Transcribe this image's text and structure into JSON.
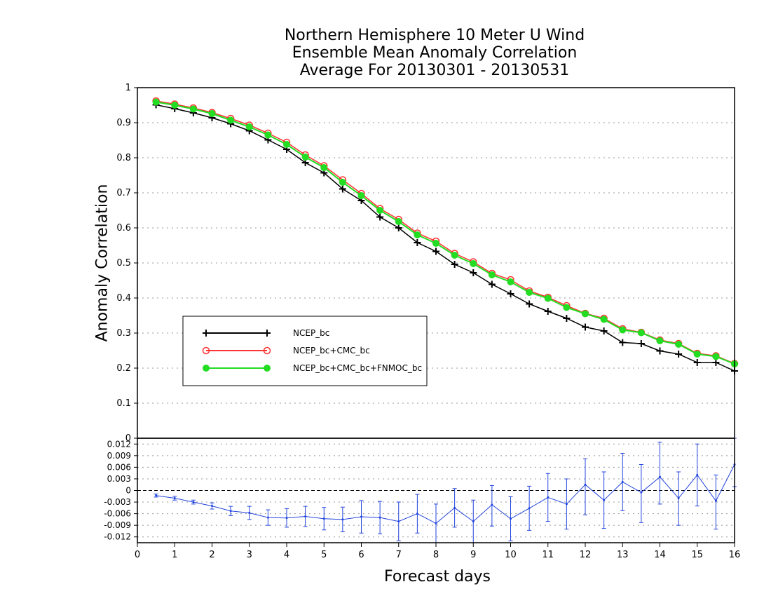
{
  "chart_data": [
    {
      "type": "line",
      "title": "Northern Hemisphere 10 Meter U Wind",
      "subtitle": "Ensemble Mean Anomaly Correlation",
      "subtitle2": "Average For 20130301 - 20130531",
      "ylabel": "Anomaly Correlation",
      "ylim": [
        0,
        1
      ],
      "yticks": [
        "0",
        "0.1",
        "0.2",
        "0.3",
        "0.4",
        "0.5",
        "0.6",
        "0.7",
        "0.8",
        "0.9",
        "1"
      ],
      "grid": true,
      "legend": "lower-left",
      "x": [
        0.5,
        1,
        1.5,
        2,
        2.5,
        3,
        3.5,
        4,
        4.5,
        5,
        5.5,
        6,
        6.5,
        7,
        7.5,
        8,
        8.5,
        9,
        9.5,
        10,
        10.5,
        11,
        11.5,
        12,
        12.5,
        13,
        13.5,
        14,
        14.5,
        15,
        15.5,
        16
      ],
      "series": [
        {
          "name": "NCEP_bc",
          "color": "#000000",
          "marker": "plus",
          "values": [
            0.951,
            0.94,
            0.928,
            0.914,
            0.897,
            0.877,
            0.851,
            0.824,
            0.786,
            0.757,
            0.711,
            0.678,
            0.631,
            0.6,
            0.558,
            0.533,
            0.496,
            0.472,
            0.439,
            0.412,
            0.383,
            0.362,
            0.342,
            0.317,
            0.306,
            0.273,
            0.27,
            0.249,
            0.24,
            0.216,
            0.216,
            0.192
          ]
        },
        {
          "name": "NCEP_bc+CMC_bc",
          "color": "#ff3333",
          "marker": "open-circle",
          "values": [
            0.962,
            0.953,
            0.942,
            0.929,
            0.912,
            0.893,
            0.87,
            0.844,
            0.808,
            0.777,
            0.737,
            0.698,
            0.655,
            0.624,
            0.585,
            0.562,
            0.527,
            0.503,
            0.47,
            0.452,
            0.42,
            0.402,
            0.378,
            0.356,
            0.342,
            0.312,
            0.302,
            0.28,
            0.27,
            0.242,
            0.235,
            0.213
          ]
        },
        {
          "name": "NCEP_bc+CMC_bc+FNMOC_bc",
          "color": "#22dd22",
          "marker": "filled-circle",
          "values": [
            0.959,
            0.95,
            0.939,
            0.926,
            0.907,
            0.888,
            0.865,
            0.838,
            0.802,
            0.772,
            0.73,
            0.692,
            0.65,
            0.618,
            0.58,
            0.556,
            0.522,
            0.498,
            0.466,
            0.446,
            0.416,
            0.399,
            0.373,
            0.355,
            0.339,
            0.309,
            0.301,
            0.278,
            0.268,
            0.24,
            0.233,
            0.212
          ]
        }
      ]
    },
    {
      "type": "line",
      "ylim": [
        -0.0135,
        0.0135
      ],
      "yticks": [
        "0.012",
        "0.009",
        "0.006",
        "0.003",
        "0",
        "-0.003",
        "-0.006",
        "-0.009",
        "-0.012"
      ],
      "xlabel": "Forecast days",
      "xlim": [
        0,
        16
      ],
      "xticks": [
        "0",
        "1",
        "2",
        "3",
        "4",
        "5",
        "6",
        "7",
        "8",
        "9",
        "10",
        "11",
        "12",
        "13",
        "14",
        "15",
        "16"
      ],
      "grid": true,
      "series": [
        {
          "color": "#2244dd",
          "marker": "error-bar",
          "x": [
            0.5,
            1,
            1.5,
            2,
            2.5,
            3,
            3.5,
            4,
            4.5,
            5,
            5.5,
            6,
            6.5,
            7,
            7.5,
            8,
            8.5,
            9,
            9.5,
            10,
            10.5,
            11,
            11.5,
            12,
            12.5,
            13,
            13.5,
            14,
            14.5,
            15,
            15.5,
            16
          ],
          "values": [
            -0.0013,
            -0.002,
            -0.003,
            -0.004,
            -0.0053,
            -0.0058,
            -0.007,
            -0.0071,
            -0.0067,
            -0.0073,
            -0.0075,
            -0.0068,
            -0.007,
            -0.008,
            -0.006,
            -0.0085,
            -0.0045,
            -0.008,
            -0.0037,
            -0.0073,
            -0.0046,
            -0.0018,
            -0.0035,
            0.0015,
            -0.0025,
            0.0022,
            -0.0005,
            0.0035,
            -0.002,
            0.004,
            -0.0027,
            0.0067
          ],
          "err_low": [
            -0.0017,
            -0.0025,
            -0.0035,
            -0.0048,
            -0.0065,
            -0.0075,
            -0.009,
            -0.0095,
            -0.0093,
            -0.0102,
            -0.0107,
            -0.011,
            -0.0112,
            -0.013,
            -0.011,
            -0.0135,
            -0.0095,
            -0.0135,
            -0.0092,
            -0.013,
            -0.0103,
            -0.008,
            -0.01,
            -0.0063,
            -0.0098,
            -0.0052,
            -0.0083,
            -0.0035,
            -0.009,
            -0.004,
            -0.01,
            0.001
          ],
          "err_high": [
            -0.0009,
            -0.0015,
            -0.0025,
            -0.0032,
            -0.0041,
            -0.0041,
            -0.005,
            -0.0047,
            -0.0041,
            -0.0044,
            -0.0043,
            -0.0026,
            -0.0028,
            -0.003,
            -0.001,
            -0.0035,
            0.0005,
            -0.0025,
            0.0013,
            -0.0016,
            0.0011,
            0.0044,
            0.003,
            0.0082,
            0.0048,
            0.0096,
            0.0067,
            0.0125,
            0.0048,
            0.012,
            0.004,
            0.0135
          ]
        }
      ]
    }
  ]
}
